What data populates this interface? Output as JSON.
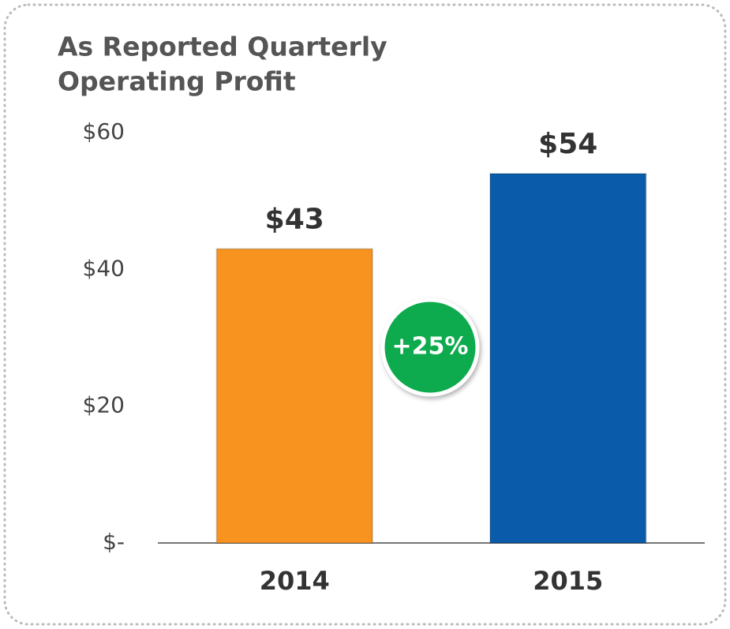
{
  "chart_data": {
    "type": "bar",
    "title": [
      "As Reported Quarterly",
      "Operating Profit"
    ],
    "categories": [
      "2014",
      "2015"
    ],
    "values": [
      43,
      54
    ],
    "value_labels": [
      "$43",
      "$54"
    ],
    "colors": [
      "#f7931e",
      "#0a5cab"
    ],
    "ylim": [
      0,
      60
    ],
    "yticks": [
      {
        "value": 0,
        "label": "$-"
      },
      {
        "value": 20,
        "label": "$20"
      },
      {
        "value": 40,
        "label": "$40"
      },
      {
        "value": 60,
        "label": "$60"
      }
    ],
    "grid": false,
    "annotation": "+25%"
  }
}
